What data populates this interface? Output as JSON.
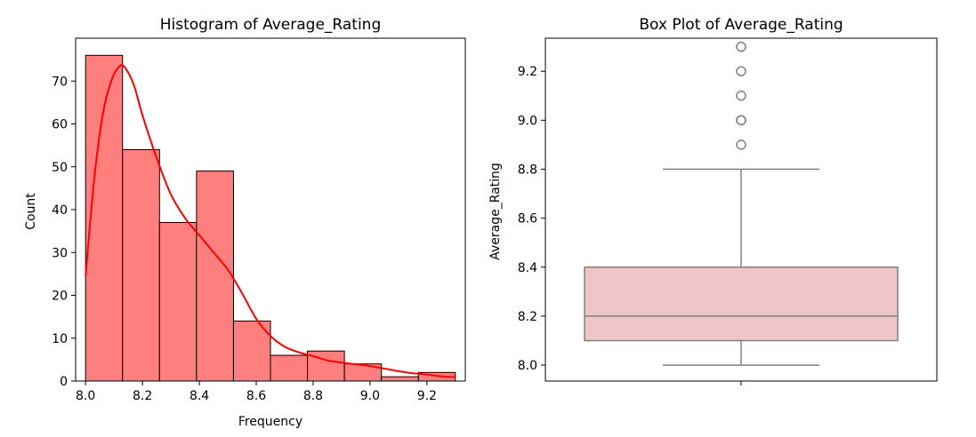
{
  "chart_data": [
    {
      "type": "bar",
      "title": "Histogram of Average_Rating",
      "xlabel": "Frequency",
      "ylabel": "Count",
      "xlim": [
        7.965,
        9.335
      ],
      "ylim": [
        0,
        80
      ],
      "xticks": [
        "8.0",
        "8.2",
        "8.4",
        "8.6",
        "8.8",
        "9.0",
        "9.2"
      ],
      "yticks": [
        "0",
        "10",
        "20",
        "30",
        "40",
        "50",
        "60",
        "70"
      ],
      "bar_color": "#ff7f7f",
      "kde_color": "#ff0000",
      "bins": [
        {
          "start": 8.0,
          "end": 8.13,
          "count": 76
        },
        {
          "start": 8.13,
          "end": 8.26,
          "count": 54
        },
        {
          "start": 8.26,
          "end": 8.39,
          "count": 37
        },
        {
          "start": 8.39,
          "end": 8.52,
          "count": 49
        },
        {
          "start": 8.52,
          "end": 8.65,
          "count": 14
        },
        {
          "start": 8.65,
          "end": 8.78,
          "count": 6
        },
        {
          "start": 8.78,
          "end": 8.91,
          "count": 7
        },
        {
          "start": 8.91,
          "end": 9.04,
          "count": 4
        },
        {
          "start": 9.04,
          "end": 9.17,
          "count": 1
        },
        {
          "start": 9.17,
          "end": 9.3,
          "count": 2
        }
      ],
      "kde": {
        "x": [
          8.0,
          8.03,
          8.06,
          8.09,
          8.12,
          8.14,
          8.17,
          8.2,
          8.25,
          8.3,
          8.35,
          8.4,
          8.45,
          8.5,
          8.55,
          8.6,
          8.65,
          8.7,
          8.75,
          8.8,
          8.85,
          8.9,
          8.95,
          9.0,
          9.05,
          9.1,
          9.15,
          9.2,
          9.25,
          9.3
        ],
        "y": [
          24.5,
          47,
          62,
          70,
          73.5,
          73,
          69,
          62,
          52,
          43.5,
          38,
          34,
          30,
          26,
          20.5,
          14.5,
          10.5,
          8,
          6.7,
          5.8,
          4.8,
          4.3,
          3.9,
          3.5,
          2.9,
          2.3,
          1.8,
          1.5,
          1.1,
          0.9
        ]
      }
    },
    {
      "type": "box",
      "title": "Box Plot of Average_Rating",
      "ylabel": "Average_Rating",
      "ylim": [
        7.935,
        9.335
      ],
      "yticks": [
        "8.0",
        "8.2",
        "8.4",
        "8.6",
        "8.8",
        "9.0",
        "9.2"
      ],
      "box_color": "#efc6c7",
      "line_color": "#808080",
      "stats": {
        "whisker_low": 8.0,
        "q1": 8.1,
        "median": 8.2,
        "q3": 8.4,
        "whisker_high": 8.8
      },
      "outliers": [
        8.9,
        9.0,
        9.0,
        9.1,
        9.2,
        9.3
      ]
    }
  ]
}
